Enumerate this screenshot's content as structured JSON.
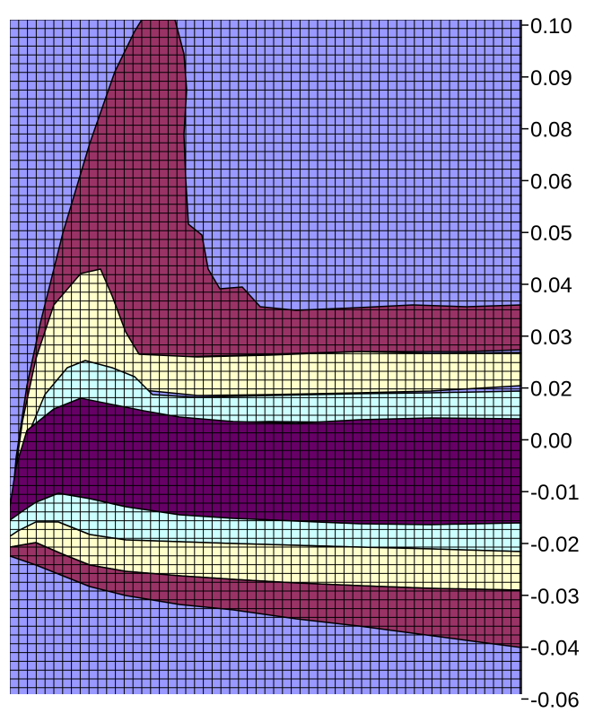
{
  "chart_data": {
    "type": "heatmap",
    "title": "",
    "xlabel": "",
    "ylabel": "",
    "ylim": [
      -0.06,
      0.1
    ],
    "grid": true,
    "legend": "none",
    "y_tick_labels": [
      "0.10",
      "0.09",
      "0.08",
      "0.06",
      "0.05",
      "0.04",
      "0.03",
      "0.02",
      "0.00",
      "-0.01",
      "-0.02",
      "-0.03",
      "-0.04",
      "-0.06"
    ],
    "band_colors": {
      "outer": "#9999ff",
      "band_1": "#993366",
      "band_2": "#ffffcc",
      "band_3": "#ccffff",
      "core": "#660066"
    },
    "gridline_color": "#000000"
  }
}
